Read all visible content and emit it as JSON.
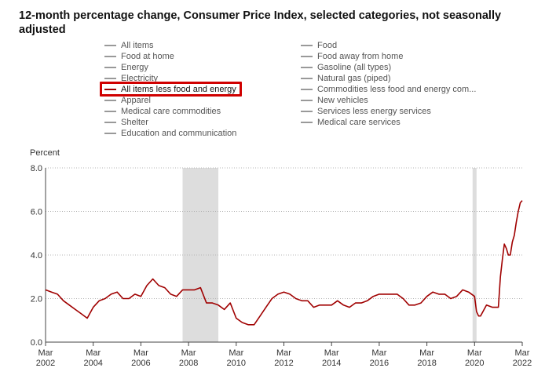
{
  "title": "12-month percentage change, Consumer Price Index, selected categories, not seasonally adjusted",
  "legend": {
    "left": [
      "All items",
      "Food at home",
      "Energy",
      "Electricity",
      "All items less food and energy",
      "Apparel",
      "Medical care commodities",
      "Shelter",
      "Education and communication"
    ],
    "right": [
      "Food",
      "Food away from home",
      "Gasoline (all types)",
      "Natural gas (piped)",
      "Commodities less food and energy com...",
      "New vehicles",
      "Services less energy services",
      "Medical care services"
    ],
    "highlighted": "All items less food and energy"
  },
  "colors": {
    "series": "#a00000",
    "legend_default": "#999999",
    "highlight": "#d00000",
    "recession": "#dddddd"
  },
  "chart_data": {
    "type": "line",
    "title": "12-month percentage change, Consumer Price Index, selected categories, not seasonally adjusted",
    "ylabel": "Percent",
    "xlabel": "",
    "ylim": [
      0,
      8
    ],
    "yticks": [
      "0.0",
      "2.0",
      "4.0",
      "6.0",
      "8.0"
    ],
    "xticks": [
      {
        "month": "Mar",
        "year": "2002"
      },
      {
        "month": "Mar",
        "year": "2004"
      },
      {
        "month": "Mar",
        "year": "2006"
      },
      {
        "month": "Mar",
        "year": "2008"
      },
      {
        "month": "Mar",
        "year": "2010"
      },
      {
        "month": "Mar",
        "year": "2012"
      },
      {
        "month": "Mar",
        "year": "2014"
      },
      {
        "month": "Mar",
        "year": "2016"
      },
      {
        "month": "Mar",
        "year": "2018"
      },
      {
        "month": "Mar",
        "year": "2020"
      },
      {
        "month": "Mar",
        "year": "2022"
      }
    ],
    "grid": "horizontal dotted",
    "recessions": [
      [
        "2007-12",
        "2009-06"
      ],
      [
        "2020-02",
        "2020-04"
      ]
    ],
    "series": [
      {
        "name": "All items less food and energy",
        "x": [
          "2002-03",
          "2002-06",
          "2002-09",
          "2002-12",
          "2003-03",
          "2003-06",
          "2003-09",
          "2003-12",
          "2004-03",
          "2004-06",
          "2004-09",
          "2004-12",
          "2005-03",
          "2005-06",
          "2005-09",
          "2005-12",
          "2006-03",
          "2006-06",
          "2006-09",
          "2006-12",
          "2007-03",
          "2007-06",
          "2007-09",
          "2007-12",
          "2008-03",
          "2008-06",
          "2008-09",
          "2008-12",
          "2009-03",
          "2009-06",
          "2009-09",
          "2009-12",
          "2010-03",
          "2010-06",
          "2010-09",
          "2010-12",
          "2011-03",
          "2011-06",
          "2011-09",
          "2011-12",
          "2012-03",
          "2012-06",
          "2012-09",
          "2012-12",
          "2013-03",
          "2013-06",
          "2013-09",
          "2013-12",
          "2014-03",
          "2014-06",
          "2014-09",
          "2014-12",
          "2015-03",
          "2015-06",
          "2015-09",
          "2015-12",
          "2016-03",
          "2016-06",
          "2016-09",
          "2016-12",
          "2017-03",
          "2017-06",
          "2017-09",
          "2017-12",
          "2018-03",
          "2018-06",
          "2018-09",
          "2018-12",
          "2019-03",
          "2019-06",
          "2019-09",
          "2019-12",
          "2020-03",
          "2020-04",
          "2020-05",
          "2020-06",
          "2020-09",
          "2020-12",
          "2021-03",
          "2021-04",
          "2021-05",
          "2021-06",
          "2021-07",
          "2021-08",
          "2021-09",
          "2021-10",
          "2021-11",
          "2021-12",
          "2022-01",
          "2022-02",
          "2022-03"
        ],
        "values": [
          2.4,
          2.3,
          2.2,
          1.9,
          1.7,
          1.5,
          1.3,
          1.1,
          1.6,
          1.9,
          2.0,
          2.2,
          2.3,
          2.0,
          2.0,
          2.2,
          2.1,
          2.6,
          2.9,
          2.6,
          2.5,
          2.2,
          2.1,
          2.4,
          2.4,
          2.4,
          2.5,
          1.8,
          1.8,
          1.7,
          1.5,
          1.8,
          1.1,
          0.9,
          0.8,
          0.8,
          1.2,
          1.6,
          2.0,
          2.2,
          2.3,
          2.2,
          2.0,
          1.9,
          1.9,
          1.6,
          1.7,
          1.7,
          1.7,
          1.9,
          1.7,
          1.6,
          1.8,
          1.8,
          1.9,
          2.1,
          2.2,
          2.2,
          2.2,
          2.2,
          2.0,
          1.7,
          1.7,
          1.8,
          2.1,
          2.3,
          2.2,
          2.2,
          2.0,
          2.1,
          2.4,
          2.3,
          2.1,
          1.4,
          1.2,
          1.2,
          1.7,
          1.6,
          1.6,
          3.0,
          3.8,
          4.5,
          4.3,
          4.0,
          4.0,
          4.6,
          4.9,
          5.5,
          6.0,
          6.4,
          6.5
        ]
      }
    ]
  }
}
